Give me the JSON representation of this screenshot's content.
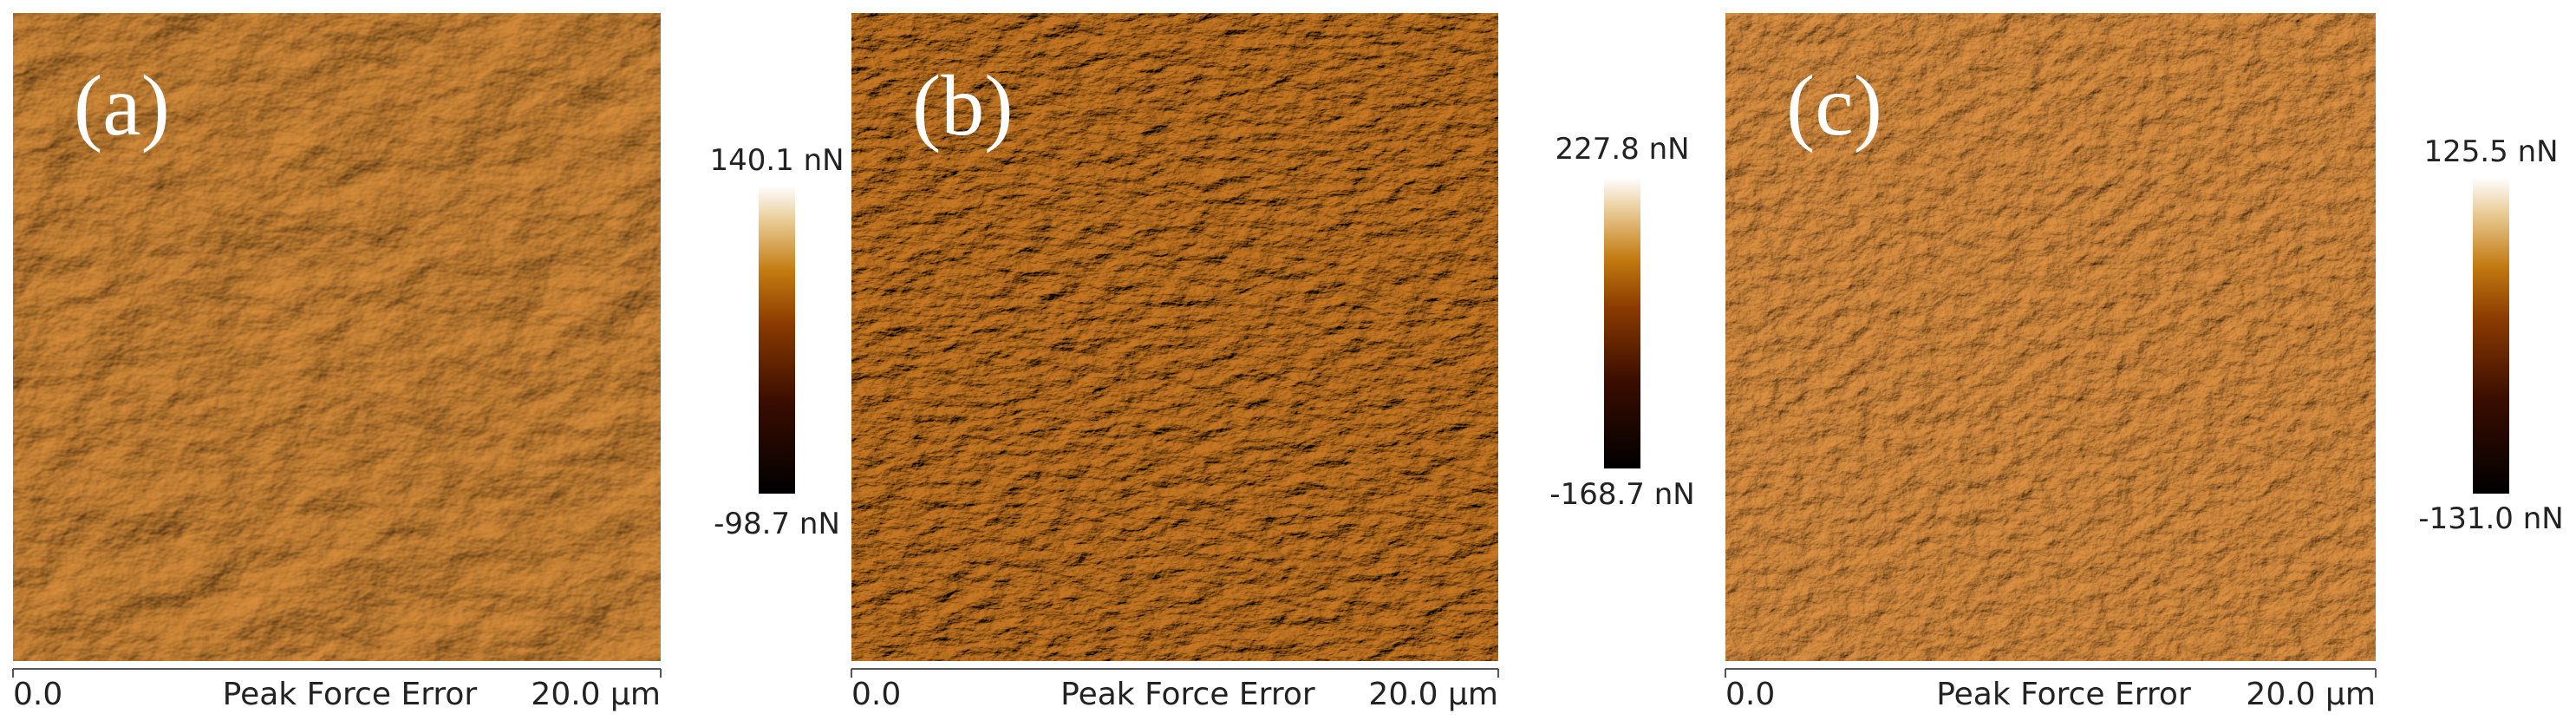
{
  "panels": [
    {
      "label": "(a)",
      "scale_max": "140.1 nN",
      "scale_min": "-98.7 nN",
      "axis_start": "0.0",
      "axis_title": "Peak Force Error",
      "axis_end": "20.0 µm"
    },
    {
      "label": "(b)",
      "scale_max": "227.8 nN",
      "scale_min": "-168.7 nN",
      "axis_start": "0.0",
      "axis_title": "Peak Force Error",
      "axis_end": "20.0 µm"
    },
    {
      "label": "(c)",
      "scale_max": "125.5 nN",
      "scale_min": "-131.0 nN",
      "axis_start": "0.0",
      "axis_title": "Peak Force Error",
      "axis_end": "20.0 µm"
    }
  ]
}
